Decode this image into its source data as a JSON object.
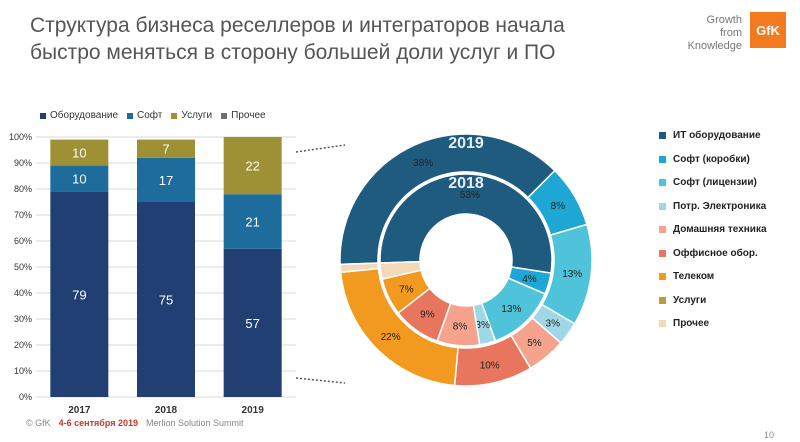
{
  "title": "Структура бизнеса реселлеров и интеграторов начала быстро меняться в сторону большей доли услуг и ПО",
  "brand": {
    "line1": "Growth",
    "line2": "from",
    "line3": "Knowledge",
    "logo": "GfK",
    "color": "#f47a20"
  },
  "footer": {
    "copyright": "© GfK",
    "date": "4-6 сентября 2019",
    "event": "Merlion Solution Summit"
  },
  "page_number": "10",
  "chart_data": [
    {
      "type": "bar",
      "stacked": true,
      "categories": [
        "2017",
        "2018",
        "2019"
      ],
      "series": [
        {
          "name": "Оборудование",
          "color": "#223f73",
          "values": [
            79,
            75,
            57
          ]
        },
        {
          "name": "Софт",
          "color": "#1e6c9c",
          "values": [
            10,
            17,
            21
          ]
        },
        {
          "name": "Услуги",
          "color": "#9d9035",
          "values": [
            10,
            7,
            22
          ]
        },
        {
          "name": "Прочее",
          "color": "#6f6f6f",
          "values": [
            0,
            0,
            0
          ]
        }
      ],
      "ylim": [
        0,
        100
      ],
      "yticks": [
        "0%",
        "10%",
        "20%",
        "30%",
        "40%",
        "50%",
        "60%",
        "70%",
        "80%",
        "90%",
        "100%"
      ],
      "grid": true,
      "legend": "top"
    },
    {
      "type": "pie",
      "donut": true,
      "rings": [
        {
          "label": "2019",
          "slices": [
            {
              "name": "ИТ оборудование",
              "value": 38,
              "label": "38%"
            },
            {
              "name": "Софт  (коробки)",
              "value": 8,
              "label": "8%"
            },
            {
              "name": "Софт  (лицензии)",
              "value": 13,
              "label": "13%"
            },
            {
              "name": "Потр. Электроника",
              "value": 3,
              "label": "3%"
            },
            {
              "name": "Домашняя техника",
              "value": 5,
              "label": "5%"
            },
            {
              "name": "Оффисное обор.",
              "value": 10,
              "label": "10%"
            },
            {
              "name": "Телеком",
              "value": 22,
              "label": "22%"
            },
            {
              "name": "Услуги",
              "value": 0,
              "label": ""
            },
            {
              "name": "Прочее",
              "value": 1,
              "label": ""
            }
          ]
        },
        {
          "label": "2018",
          "slices": [
            {
              "name": "ИТ оборудование",
              "value": 53,
              "label": "53%"
            },
            {
              "name": "Софт  (коробки)",
              "value": 4,
              "label": "4%"
            },
            {
              "name": "Софт  (лицензии)",
              "value": 13,
              "label": "13%"
            },
            {
              "name": "Потр. Электроника",
              "value": 3,
              "label": "3%"
            },
            {
              "name": "Домашняя техника",
              "value": 8,
              "label": "8%"
            },
            {
              "name": "Оффисное обор.",
              "value": 9,
              "label": "9%"
            },
            {
              "name": "Телеком",
              "value": 7,
              "label": "7%"
            },
            {
              "name": "Услуги",
              "value": 0,
              "label": ""
            },
            {
              "name": "Прочее",
              "value": 3,
              "label": ""
            }
          ]
        }
      ],
      "legend_entries": [
        {
          "name": "ИТ оборудование",
          "color": "#1f5b7f"
        },
        {
          "name": "Софт  (коробки)",
          "color": "#1ea7d4"
        },
        {
          "name": "Софт  (лицензии)",
          "color": "#4fc3d9"
        },
        {
          "name": "Потр. Электроника",
          "color": "#9ed8e6"
        },
        {
          "name": "Домашняя техника",
          "color": "#f5a38c"
        },
        {
          "name": "Оффисное обор.",
          "color": "#e8765e"
        },
        {
          "name": "Телеком",
          "color": "#f29a1f"
        },
        {
          "name": "Услуги",
          "color": "#b5a137"
        },
        {
          "name": "Прочее",
          "color": "#f3d9b8"
        }
      ],
      "legend": "right"
    }
  ]
}
